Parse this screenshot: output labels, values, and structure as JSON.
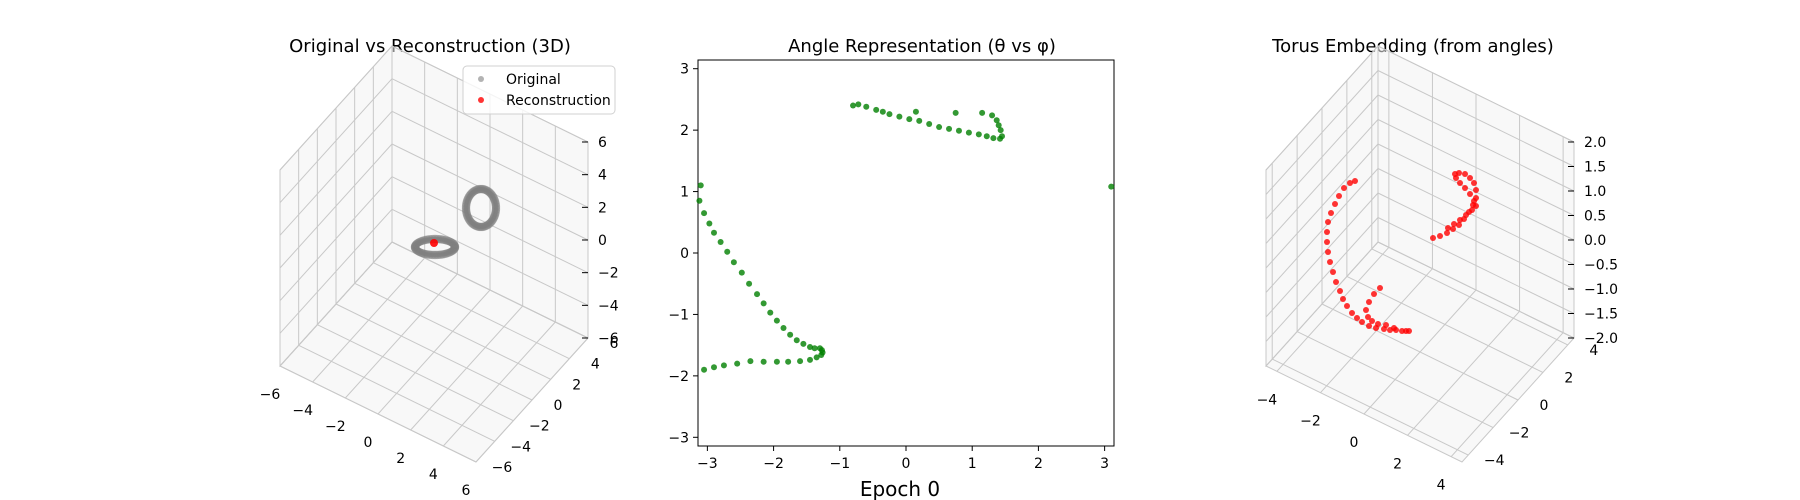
{
  "suptitle": "Epoch 0",
  "colors": {
    "original": "#808080",
    "reconstruction": "#ff0000",
    "angles": "#008000",
    "grid": "#c8c8c8"
  },
  "chart_data": [
    {
      "type": "scatter3d",
      "title": "Original vs Reconstruction (3D)",
      "xlim": [
        -6,
        6
      ],
      "ylim": [
        -6,
        6
      ],
      "zlim": [
        -6,
        6
      ],
      "x_ticks": [
        "−6",
        "−4",
        "−2",
        "0",
        "2",
        "4",
        "6"
      ],
      "y_ticks": [
        "−6",
        "−4",
        "−2",
        "0",
        "2",
        "4",
        "6"
      ],
      "z_ticks": [
        "−6",
        "−4",
        "−2",
        "0",
        "2",
        "4",
        "6"
      ],
      "grid": true,
      "legend": {
        "placement": "top-right",
        "entries": [
          "Original",
          "Reconstruction"
        ]
      },
      "series": [
        {
          "name": "Original",
          "description": "two small rings (torus-like loops)",
          "rings": [
            {
              "center": [
                0.0,
                2.5,
                -1.0
              ],
              "radius": 1.0,
              "plane": "xy"
            },
            {
              "center": [
                1.5,
                0.5,
                1.5
              ],
              "radius": 1.0,
              "plane": "yz"
            }
          ]
        },
        {
          "name": "Reconstruction",
          "points": [
            [
              0.0,
              2.5,
              -1.0
            ]
          ]
        }
      ]
    },
    {
      "type": "scatter",
      "title": "Angle Representation (θ vs φ)",
      "xlim": [
        -3.1416,
        3.1416
      ],
      "ylim": [
        -3.1416,
        3.1416
      ],
      "x_ticks": [
        "−3",
        "−2",
        "−1",
        "0",
        "1",
        "2",
        "3"
      ],
      "y_ticks": [
        "−3",
        "−2",
        "−1",
        "0",
        "1",
        "2",
        "3"
      ],
      "grid": false,
      "points": [
        [
          -3.1,
          1.1
        ],
        [
          -3.12,
          0.85
        ],
        [
          -3.05,
          0.65
        ],
        [
          -2.97,
          0.48
        ],
        [
          -2.9,
          0.33
        ],
        [
          -2.8,
          0.18
        ],
        [
          -2.7,
          0.02
        ],
        [
          -2.6,
          -0.15
        ],
        [
          -2.48,
          -0.32
        ],
        [
          -2.37,
          -0.5
        ],
        [
          -2.25,
          -0.67
        ],
        [
          -2.15,
          -0.82
        ],
        [
          -2.05,
          -0.97
        ],
        [
          -1.95,
          -1.1
        ],
        [
          -1.85,
          -1.22
        ],
        [
          -1.75,
          -1.33
        ],
        [
          -1.65,
          -1.42
        ],
        [
          -1.55,
          -1.48
        ],
        [
          -1.45,
          -1.53
        ],
        [
          -1.38,
          -1.55
        ],
        [
          -1.3,
          -1.55
        ],
        [
          -1.27,
          -1.58
        ],
        [
          -1.26,
          -1.62
        ],
        [
          -1.28,
          -1.66
        ],
        [
          -1.35,
          -1.7
        ],
        [
          -1.45,
          -1.74
        ],
        [
          -1.6,
          -1.76
        ],
        [
          -1.78,
          -1.77
        ],
        [
          -1.95,
          -1.77
        ],
        [
          -2.15,
          -1.77
        ],
        [
          -2.35,
          -1.76
        ],
        [
          -2.55,
          -1.8
        ],
        [
          -2.75,
          -1.83
        ],
        [
          -2.9,
          -1.86
        ],
        [
          -3.05,
          -1.9
        ],
        [
          3.1,
          1.08
        ],
        [
          -0.8,
          2.4
        ],
        [
          -0.72,
          2.42
        ],
        [
          -0.6,
          2.38
        ],
        [
          -0.45,
          2.33
        ],
        [
          -0.35,
          2.3
        ],
        [
          -0.25,
          2.26
        ],
        [
          -0.1,
          2.22
        ],
        [
          0.05,
          2.18
        ],
        [
          0.2,
          2.15
        ],
        [
          0.35,
          2.1
        ],
        [
          0.5,
          2.05
        ],
        [
          0.65,
          2.02
        ],
        [
          0.8,
          1.99
        ],
        [
          0.95,
          1.96
        ],
        [
          1.1,
          1.93
        ],
        [
          1.22,
          1.9
        ],
        [
          1.32,
          1.87
        ],
        [
          1.42,
          1.86
        ],
        [
          1.45,
          1.9
        ],
        [
          1.43,
          2.0
        ],
        [
          1.4,
          2.08
        ],
        [
          1.37,
          2.16
        ],
        [
          1.3,
          2.24
        ],
        [
          0.15,
          2.3
        ],
        [
          0.75,
          2.28
        ],
        [
          1.15,
          2.28
        ]
      ]
    },
    {
      "type": "scatter3d",
      "title": "Torus Embedding (from angles)",
      "xlim": [
        -4.5,
        4.5
      ],
      "ylim": [
        -4.5,
        4.5
      ],
      "zlim": [
        -2,
        2
      ],
      "x_ticks": [
        "−4",
        "−2",
        "0",
        "2",
        "4"
      ],
      "y_ticks": [
        "−4",
        "−2",
        "0",
        "2",
        "4"
      ],
      "z_ticks": [
        "−2.0",
        "−1.5",
        "−1.0",
        "−0.5",
        "0.0",
        "0.5",
        "1.0",
        "1.5",
        "2.0"
      ],
      "grid": true,
      "series": [
        {
          "name": "",
          "description": "two arcs of red points on a torus"
        }
      ]
    }
  ]
}
